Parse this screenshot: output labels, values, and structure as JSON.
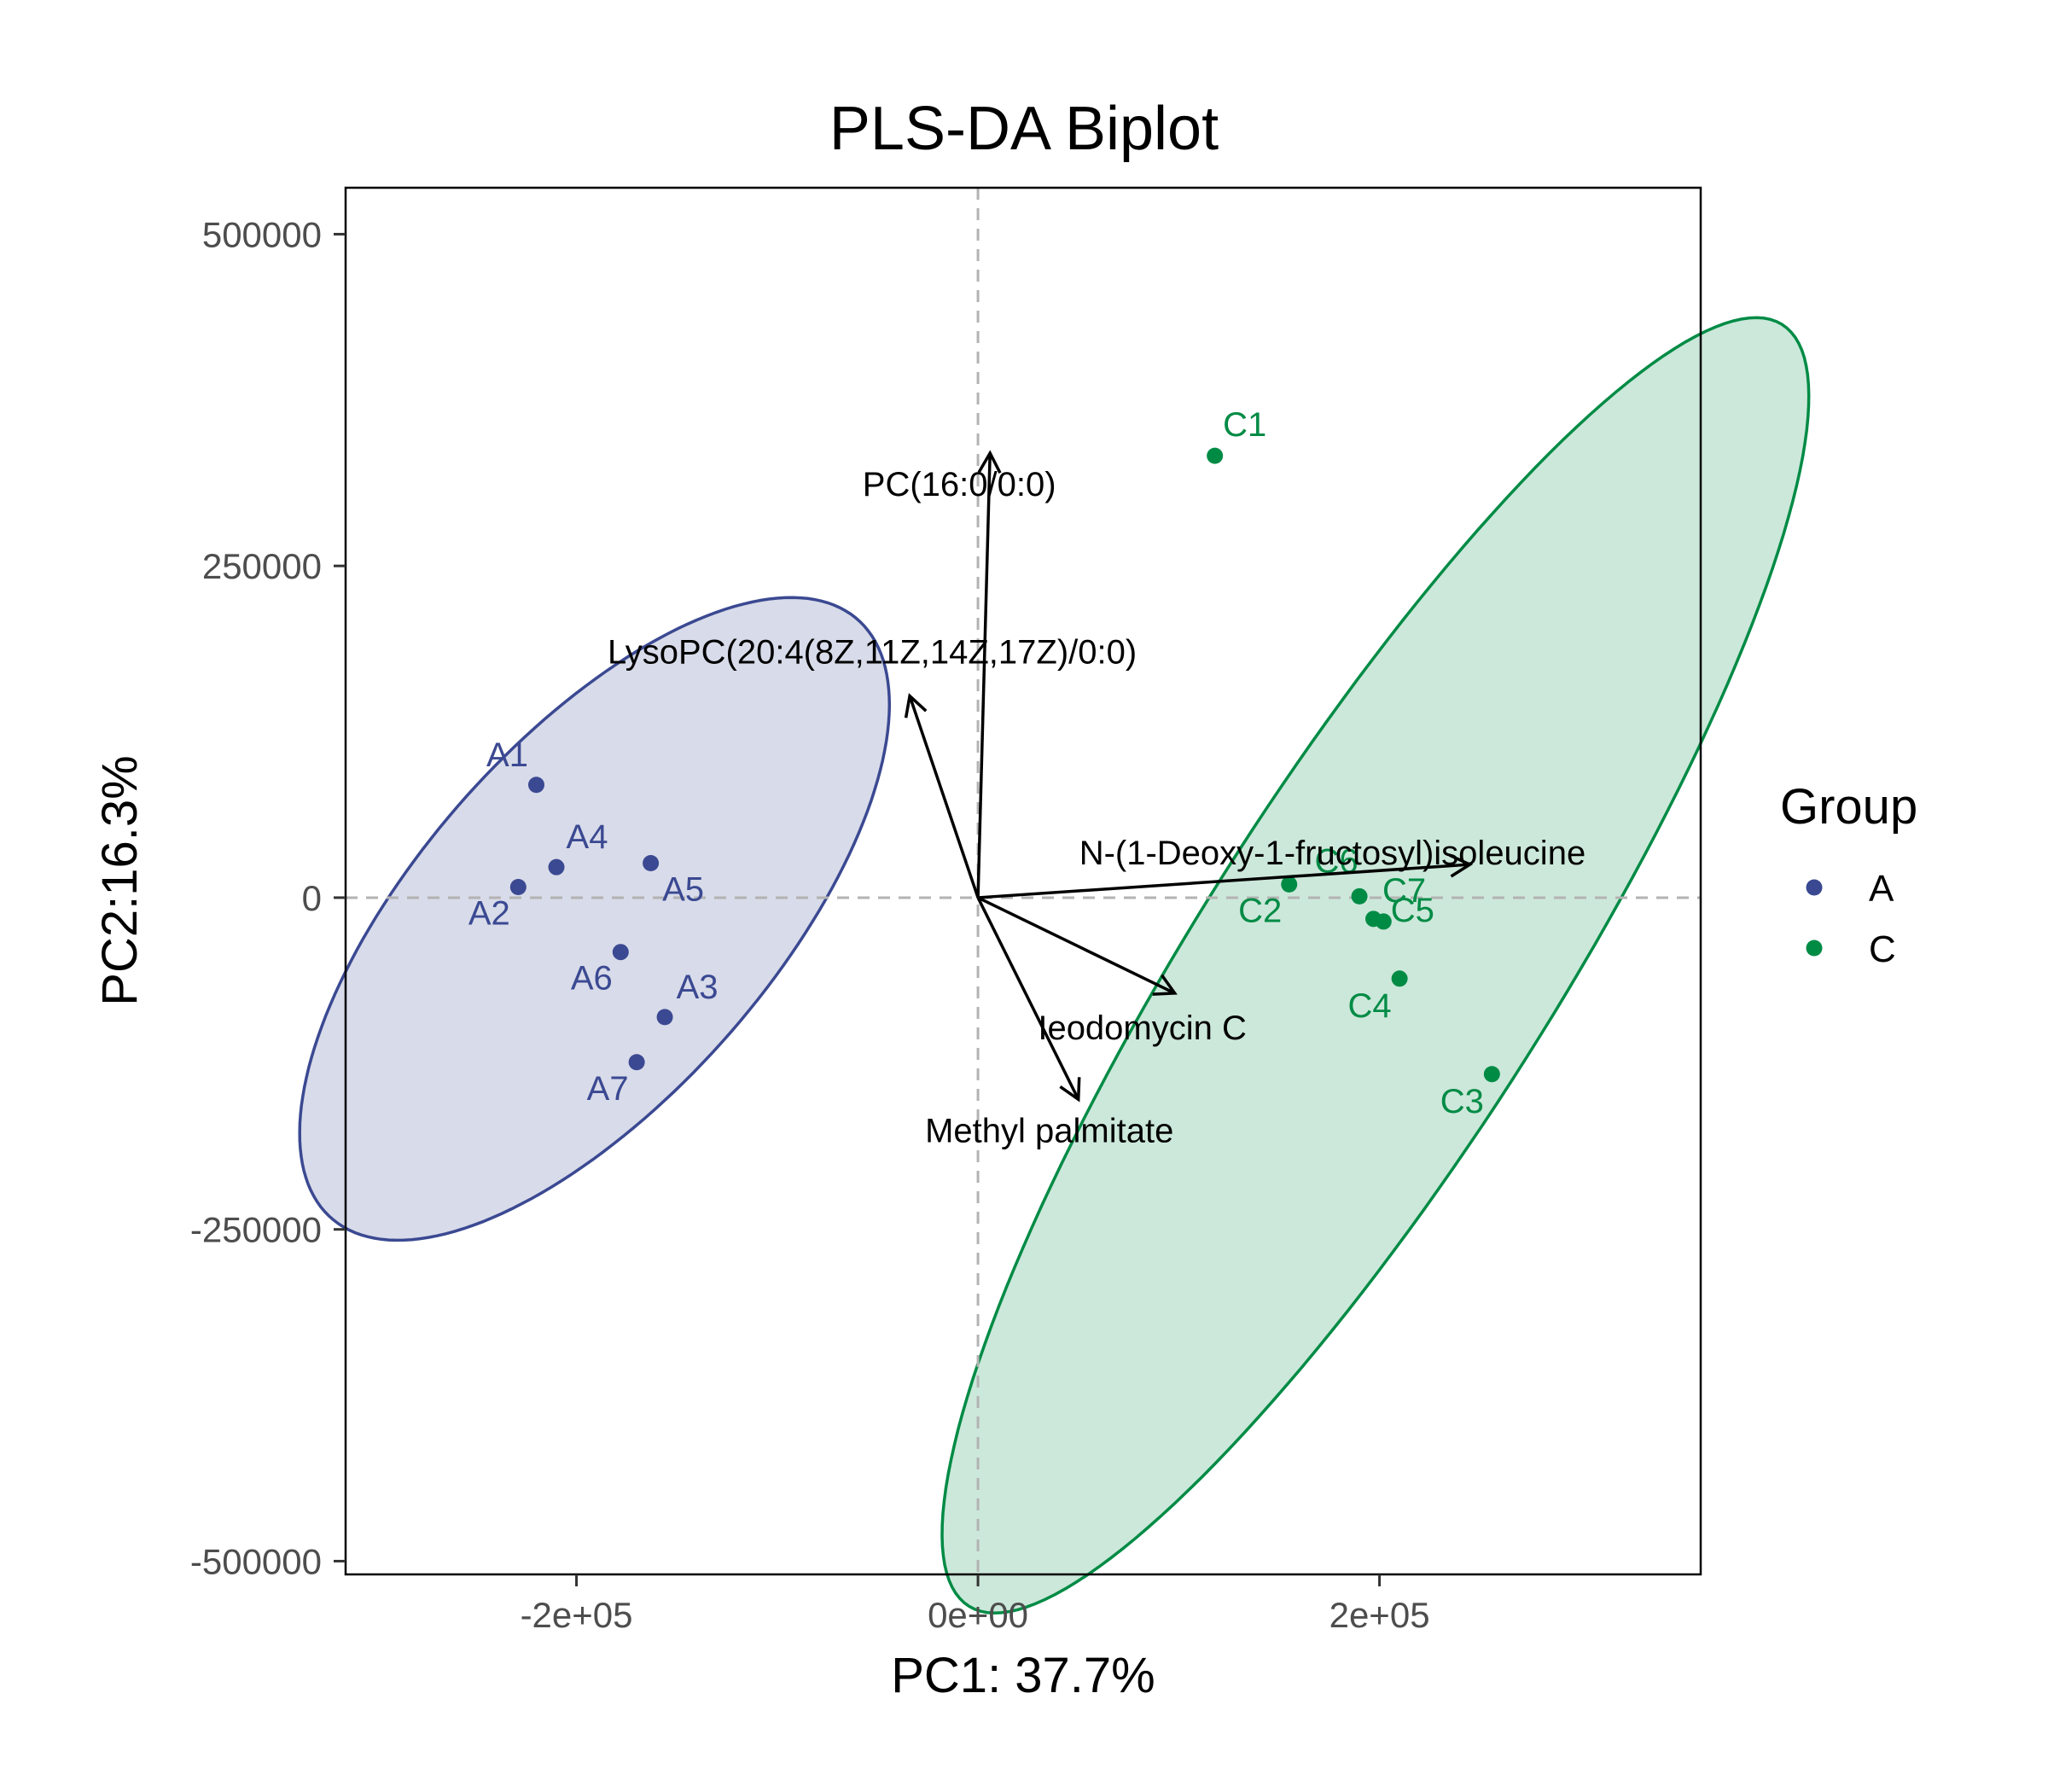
{
  "chart_data": {
    "type": "scatter",
    "title": "PLS-DA Biplot",
    "xlabel": "PC1: 37.7%",
    "ylabel": "PC2:16.3%",
    "xlim": [
      -315000,
      360000
    ],
    "ylim": [
      -510000,
      535000
    ],
    "x_ticks": [
      -200000,
      0,
      200000
    ],
    "x_tick_labels": [
      "-2e+05",
      "0e+00",
      "2e+05"
    ],
    "y_ticks": [
      -500000,
      -250000,
      0,
      250000,
      500000
    ],
    "y_tick_labels": [
      "-500000",
      "-250000",
      "0",
      "250000",
      "500000"
    ],
    "grid": false,
    "reference_lines": {
      "x": 0,
      "y": 0,
      "style": "dashed"
    },
    "legend": {
      "title": "Group",
      "placement": "right",
      "entries": [
        {
          "label": "A",
          "color": "#3B4992"
        },
        {
          "label": "C",
          "color": "#008B45"
        }
      ]
    },
    "series": [
      {
        "name": "A",
        "color": "#3B4992",
        "points": [
          {
            "label": "A1",
            "x": -220000,
            "y": 85000
          },
          {
            "label": "A2",
            "x": -229000,
            "y": 8000
          },
          {
            "label": "A3",
            "x": -156000,
            "y": -90000
          },
          {
            "label": "A4",
            "x": -210000,
            "y": 23000
          },
          {
            "label": "A5",
            "x": -163000,
            "y": 26000
          },
          {
            "label": "A6",
            "x": -178000,
            "y": -41000
          },
          {
            "label": "A7",
            "x": -170000,
            "y": -124000
          }
        ],
        "ellipse": {
          "cx": -191000,
          "cy": -16000,
          "rx": 100000,
          "ry": 265000,
          "angle": 26.0
        }
      },
      {
        "name": "C",
        "color": "#008B45",
        "points": [
          {
            "label": "C1",
            "x": 118000,
            "y": 333000
          },
          {
            "label": "C2",
            "x": 155000,
            "y": 10000
          },
          {
            "label": "C3",
            "x": 256000,
            "y": -133000
          },
          {
            "label": "C4",
            "x": 210000,
            "y": -61000
          },
          {
            "label": "C5",
            "x": 202000,
            "y": -18000
          },
          {
            "label": "C6",
            "x": 190000,
            "y": 1000
          },
          {
            "label": "C7",
            "x": 197000,
            "y": -16000
          }
        ],
        "ellipse": {
          "cx": 198000,
          "cy": -51000,
          "rx": 96000,
          "ry": 525000,
          "angle": 22.0
        }
      }
    ],
    "loadings": [
      {
        "label": "PC(16:0/0:0)",
        "x": 6000,
        "y": 335000
      },
      {
        "label": "LysoPC(20:4(8Z,11Z,14Z,17Z)/0:0)",
        "x": -34000,
        "y": 152000
      },
      {
        "label": "N-(1-Deoxy-1-fructosyl)isoleucine",
        "x": 245000,
        "y": 25000
      },
      {
        "label": "Ieodomycin C",
        "x": 98000,
        "y": -72000
      },
      {
        "label": "Methyl palmitate",
        "x": 50000,
        "y": -152000
      }
    ]
  }
}
